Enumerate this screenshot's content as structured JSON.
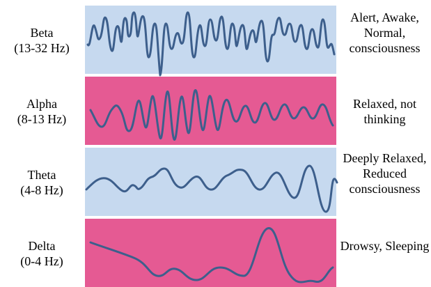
{
  "colors": {
    "light_band": "#c6d9ef",
    "pink_band": "#e55a93",
    "wave": "#3d5f8c"
  },
  "bands": [
    {
      "name": "Beta",
      "range": "(13-32 Hz)",
      "state": "Alert, Awake, Normal, consciousness",
      "band_color": "light_band"
    },
    {
      "name": "Alpha",
      "range": "(8-13 Hz)",
      "state": "Relaxed, not thinking",
      "band_color": "pink_band"
    },
    {
      "name": "Theta",
      "range": "(4-8 Hz)",
      "state": "Deeply Relaxed, Reduced consciousness",
      "band_color": "light_band"
    },
    {
      "name": "Delta",
      "range": "(0-4 Hz)",
      "state": "Drowsy, Sleeping",
      "band_color": "pink_band"
    }
  ]
}
